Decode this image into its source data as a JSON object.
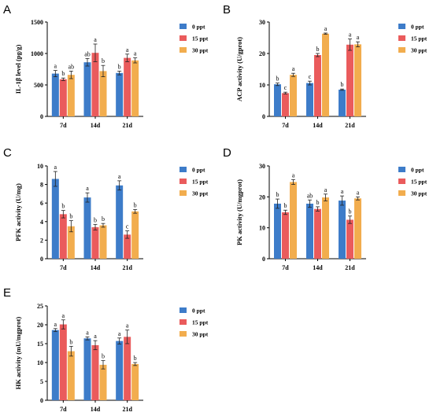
{
  "colors": {
    "0 ppt": "#3d7cc9",
    "15 ppt": "#ea5b5c",
    "30 ppt": "#f2ad4e"
  },
  "chart_data": [
    {
      "panel": "A",
      "type": "bar",
      "categories": [
        "7d",
        "14d",
        "21d"
      ],
      "ylabel": "IL-1β level (pg/g)",
      "ylim": [
        0,
        1500
      ],
      "yticks": [
        0,
        500,
        1000,
        1500
      ],
      "legend_position": "top-right",
      "series": [
        {
          "name": "0 ppt",
          "values": [
            680,
            860,
            690
          ],
          "errors": [
            50,
            60,
            30
          ],
          "letters": [
            "a",
            "ab",
            "b"
          ]
        },
        {
          "name": "15 ppt",
          "values": [
            590,
            1010,
            930
          ],
          "errors": [
            20,
            140,
            60
          ],
          "letters": [
            "b",
            "a",
            "a"
          ]
        },
        {
          "name": "30 ppt",
          "values": [
            660,
            720,
            890
          ],
          "errors": [
            60,
            90,
            40
          ],
          "letters": [
            "ab",
            "b",
            "a"
          ]
        }
      ]
    },
    {
      "panel": "B",
      "type": "bar",
      "categories": [
        "7d",
        "14d",
        "21d"
      ],
      "ylabel": "ACP activity (U/gprot)",
      "ylim": [
        0,
        30
      ],
      "yticks": [
        0,
        10,
        20,
        30
      ],
      "legend_position": "top-right",
      "series": [
        {
          "name": "0 ppt",
          "values": [
            10.2,
            10.6,
            8.5
          ],
          "errors": [
            0.4,
            0.6,
            0.2
          ],
          "letters": [
            "b",
            "c",
            "b"
          ]
        },
        {
          "name": "15 ppt",
          "values": [
            7.4,
            19.5,
            22.8
          ],
          "errors": [
            0.3,
            0.5,
            1.8
          ],
          "letters": [
            "c",
            "b",
            "a"
          ]
        },
        {
          "name": "30 ppt",
          "values": [
            13.2,
            26.3,
            22.9
          ],
          "errors": [
            0.5,
            0.2,
            0.8
          ],
          "letters": [
            "a",
            "a",
            "a"
          ]
        }
      ]
    },
    {
      "panel": "C",
      "type": "bar",
      "categories": [
        "7d",
        "14d",
        "21d"
      ],
      "ylabel": "PFK activity (U/mg)",
      "ylim": [
        0,
        10
      ],
      "yticks": [
        0,
        2,
        4,
        6,
        8,
        10
      ],
      "legend_position": "top-right",
      "series": [
        {
          "name": "0 ppt",
          "values": [
            8.6,
            6.6,
            7.9
          ],
          "errors": [
            0.8,
            0.5,
            0.5
          ],
          "letters": [
            "a",
            "a",
            "a"
          ]
        },
        {
          "name": "15 ppt",
          "values": [
            4.8,
            3.4,
            2.6
          ],
          "errors": [
            0.4,
            0.3,
            0.4
          ],
          "letters": [
            "b",
            "b",
            "c"
          ]
        },
        {
          "name": "30 ppt",
          "values": [
            3.5,
            3.6,
            5.1
          ],
          "errors": [
            0.6,
            0.2,
            0.2
          ],
          "letters": [
            "b",
            "b",
            "b"
          ]
        }
      ]
    },
    {
      "panel": "D",
      "type": "bar",
      "categories": [
        "7d",
        "14d",
        "21d"
      ],
      "ylabel": "PK activity (U/mgprot)",
      "ylim": [
        0,
        30
      ],
      "yticks": [
        0,
        10,
        20,
        30
      ],
      "legend_position": "top-right",
      "series": [
        {
          "name": "0 ppt",
          "values": [
            17.8,
            17.8,
            18.8
          ],
          "errors": [
            1.5,
            1.2,
            1.5
          ],
          "letters": [
            "b",
            "ab",
            "a"
          ]
        },
        {
          "name": "15 ppt",
          "values": [
            15.0,
            16.1,
            12.6
          ],
          "errors": [
            0.7,
            0.7,
            1.2
          ],
          "letters": [
            "b",
            "b",
            "b"
          ]
        },
        {
          "name": "30 ppt",
          "values": [
            24.8,
            19.8,
            19.5
          ],
          "errors": [
            0.8,
            1.1,
            0.5
          ],
          "letters": [
            "a",
            "a",
            "a"
          ]
        }
      ]
    },
    {
      "panel": "E",
      "type": "bar",
      "categories": [
        "7d",
        "14d",
        "21d"
      ],
      "ylabel": "HK activity (mU/mgprot)",
      "ylim": [
        0,
        25
      ],
      "yticks": [
        0,
        5,
        10,
        15,
        20,
        25
      ],
      "legend_position": "top-right",
      "series": [
        {
          "name": "0 ppt",
          "values": [
            18.6,
            16.4,
            15.7
          ],
          "errors": [
            0.4,
            0.4,
            0.8
          ],
          "letters": [
            "a",
            "a",
            "a"
          ]
        },
        {
          "name": "15 ppt",
          "values": [
            20.1,
            14.6,
            16.8
          ],
          "errors": [
            1.2,
            1.2,
            1.8
          ],
          "letters": [
            "a",
            "a",
            "a"
          ]
        },
        {
          "name": "30 ppt",
          "values": [
            13.0,
            9.4,
            9.6
          ],
          "errors": [
            1.3,
            1.1,
            0.4
          ],
          "letters": [
            "b",
            "b",
            "b"
          ]
        }
      ]
    }
  ]
}
